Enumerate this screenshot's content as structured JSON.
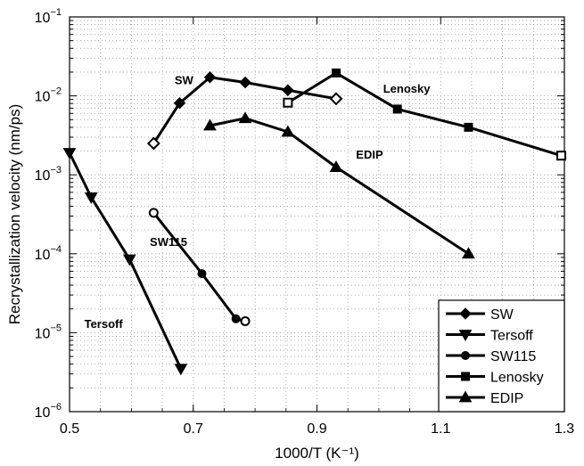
{
  "chart_data": {
    "type": "line",
    "xlabel": "1000/T (K⁻¹)",
    "ylabel": "Recrystallization velocity (nm/ps)",
    "xlim": [
      0.5,
      1.3
    ],
    "ylim": [
      1e-06,
      0.1
    ],
    "yscale": "log",
    "grid": true,
    "legend_position": "bottom-right",
    "x_ticks": [
      {
        "value": 0.5,
        "label": "0.5"
      },
      {
        "value": 0.7,
        "label": "0.7"
      },
      {
        "value": 0.9,
        "label": "0.9"
      },
      {
        "value": 1.1,
        "label": "1.1"
      },
      {
        "value": 1.3,
        "label": "1.3"
      }
    ],
    "y_ticks": [
      {
        "value": 1e-06,
        "base": "10",
        "exp": "−6"
      },
      {
        "value": 1e-05,
        "base": "10",
        "exp": "−5"
      },
      {
        "value": 0.0001,
        "base": "10",
        "exp": "−4"
      },
      {
        "value": 0.001,
        "base": "10",
        "exp": "−3"
      },
      {
        "value": 0.01,
        "base": "10",
        "exp": "−2"
      },
      {
        "value": 0.1,
        "base": "10",
        "exp": "−1"
      }
    ],
    "series": [
      {
        "name": "SW",
        "marker": "diamond",
        "x": [
          0.636,
          0.678,
          0.727,
          0.784,
          0.853,
          0.931
        ],
        "y": [
          0.0025,
          0.0081,
          0.0172,
          0.0148,
          0.0118,
          0.0092
        ],
        "open": [
          true,
          false,
          false,
          false,
          false,
          true
        ]
      },
      {
        "name": "Tersoff",
        "marker": "triangle-down",
        "x": [
          0.5,
          0.535,
          0.597,
          0.68
        ],
        "y": [
          0.0019,
          0.00052,
          8.5e-05,
          3.5e-06
        ],
        "open": [
          false,
          false,
          false,
          false
        ]
      },
      {
        "name": "SW115",
        "marker": "circle",
        "x": [
          0.636,
          0.714,
          0.769,
          0.784
        ],
        "y": [
          0.00033,
          5.6e-05,
          1.5e-05,
          1.4e-05
        ],
        "open": [
          true,
          false,
          false,
          true
        ]
      },
      {
        "name": "Lenosky",
        "marker": "square",
        "x": [
          0.853,
          0.931,
          1.03,
          1.145,
          1.295
        ],
        "y": [
          0.0082,
          0.0195,
          0.0068,
          0.004,
          0.00175
        ],
        "open": [
          true,
          false,
          false,
          false,
          true
        ]
      },
      {
        "name": "EDIP",
        "marker": "triangle-up",
        "x": [
          0.727,
          0.784,
          0.853,
          0.931,
          1.145
        ],
        "y": [
          0.0042,
          0.0052,
          0.0035,
          0.00125,
          0.0001
        ],
        "open": [
          false,
          false,
          false,
          false,
          false
        ]
      }
    ],
    "annotations": [
      {
        "text": "SW",
        "x": 0.685,
        "y": 0.014
      },
      {
        "text": "Lenosky",
        "x": 1.045,
        "y": 0.011
      },
      {
        "text": "EDIP",
        "x": 0.985,
        "y": 0.0016
      },
      {
        "text": "SW115",
        "x": 0.66,
        "y": 0.000125
      },
      {
        "text": "Tersoff",
        "x": 0.555,
        "y": 1.15e-05
      }
    ]
  }
}
